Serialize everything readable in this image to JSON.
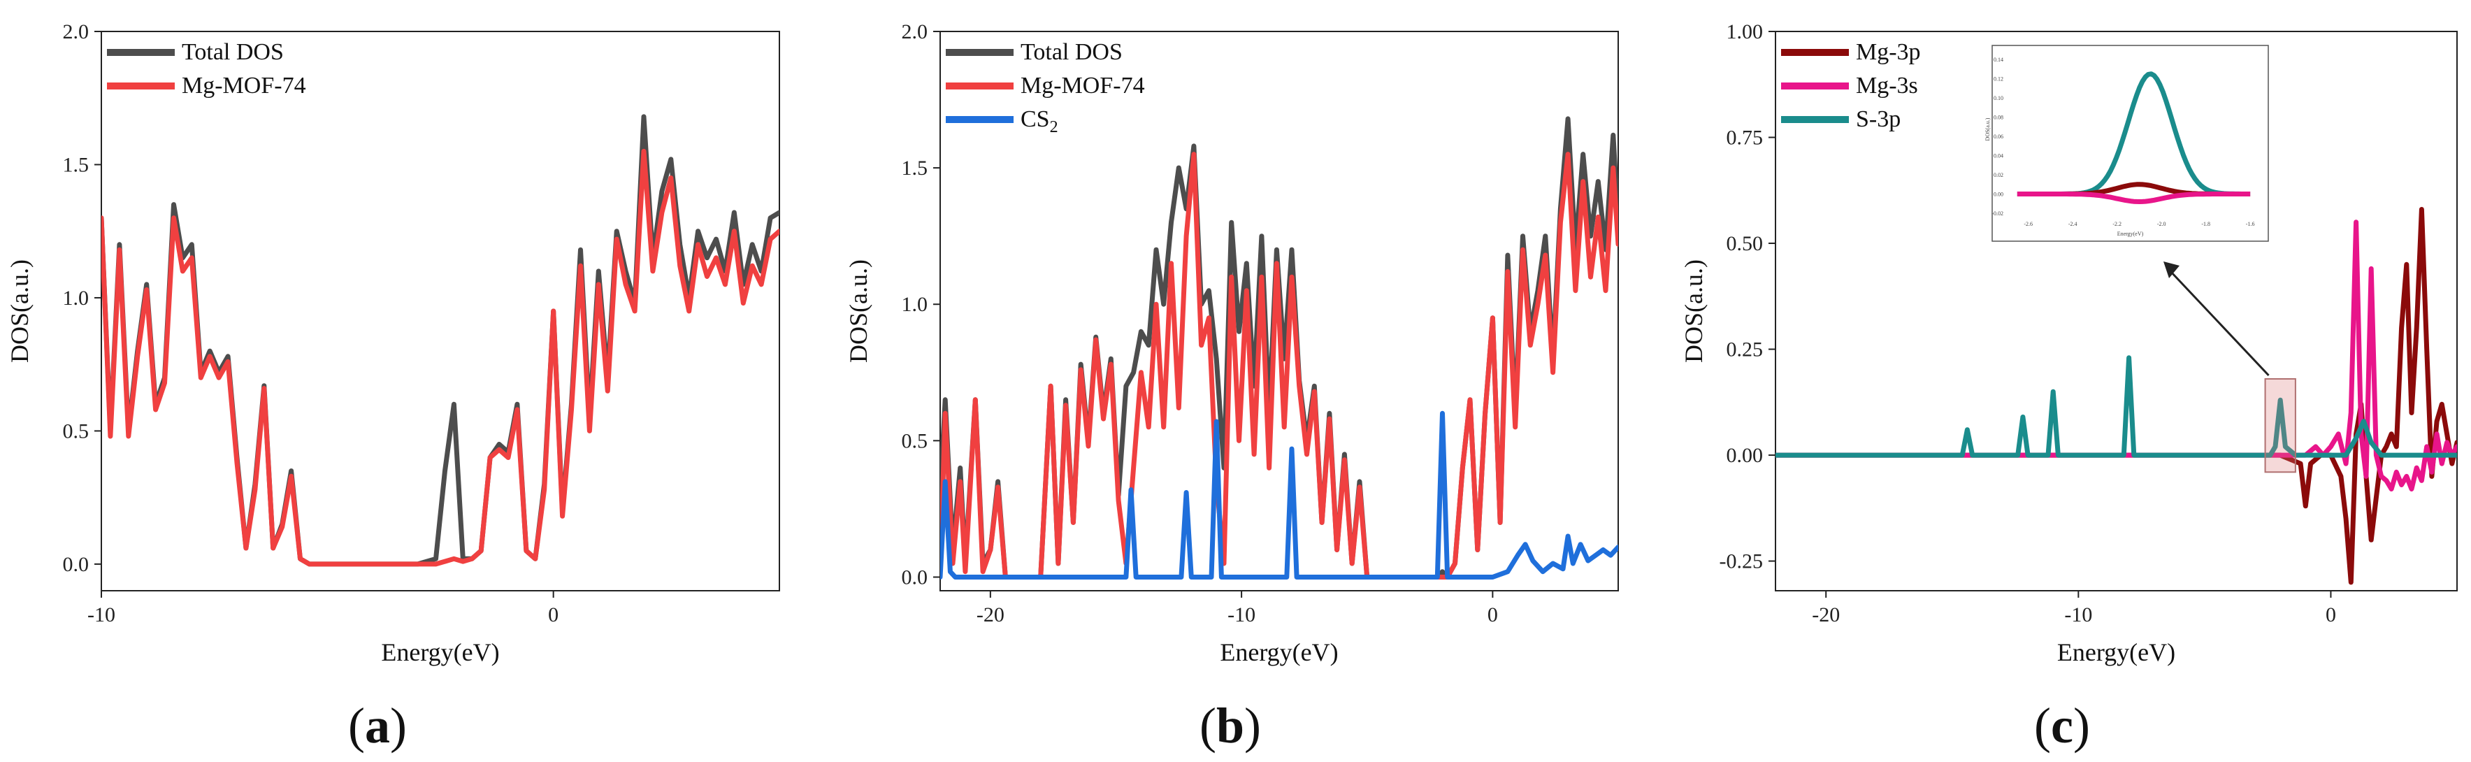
{
  "chart_data": [
    {
      "type": "line",
      "panel_label": "a",
      "xlabel": "Energy(eV)",
      "ylabel": "DOS(a.u.)",
      "xlim": [
        -10,
        5
      ],
      "ylim": [
        -0.1,
        2.0
      ],
      "xticks": [
        -10,
        0
      ],
      "yticks": [
        "0.0",
        "0.5",
        "1.0",
        "1.5",
        "2.0"
      ],
      "legend_position": "top-left",
      "series": [
        {
          "name": "Total DOS",
          "color": "#4d4d4d",
          "x": [
            -10,
            -9.8,
            -9.6,
            -9.4,
            -9.2,
            -9.0,
            -8.8,
            -8.6,
            -8.4,
            -8.2,
            -8.0,
            -7.8,
            -7.6,
            -7.4,
            -7.2,
            -7.0,
            -6.8,
            -6.6,
            -6.4,
            -6.2,
            -6.0,
            -5.8,
            -5.6,
            -5.4,
            -5.2,
            -5.0,
            -4.5,
            -4.0,
            -3.5,
            -3.0,
            -2.6,
            -2.4,
            -2.2,
            -2.0,
            -1.8,
            -1.6,
            -1.4,
            -1.2,
            -1.0,
            -0.8,
            -0.6,
            -0.4,
            -0.2,
            0.0,
            0.2,
            0.4,
            0.6,
            0.8,
            1.0,
            1.2,
            1.4,
            1.6,
            1.8,
            2.0,
            2.2,
            2.4,
            2.6,
            2.8,
            3.0,
            3.2,
            3.4,
            3.6,
            3.8,
            4.0,
            4.2,
            4.4,
            4.6,
            4.8,
            5.0
          ],
          "y": [
            1.3,
            0.5,
            1.2,
            0.5,
            0.8,
            1.05,
            0.6,
            0.7,
            1.35,
            1.15,
            1.2,
            0.72,
            0.8,
            0.72,
            0.78,
            0.4,
            0.06,
            0.3,
            0.67,
            0.06,
            0.15,
            0.35,
            0.02,
            0.0,
            0.0,
            0.0,
            0.0,
            0.0,
            0.0,
            0.0,
            0.02,
            0.35,
            0.6,
            0.02,
            0.02,
            0.05,
            0.4,
            0.45,
            0.42,
            0.6,
            0.05,
            0.02,
            0.3,
            0.95,
            0.2,
            0.6,
            1.18,
            0.55,
            1.1,
            0.7,
            1.25,
            1.1,
            0.98,
            1.68,
            1.15,
            1.4,
            1.52,
            1.2,
            1.0,
            1.25,
            1.15,
            1.22,
            1.1,
            1.32,
            1.05,
            1.2,
            1.1,
            1.3,
            1.32
          ]
        },
        {
          "name": "Mg-MOF-74",
          "color": "#f04040",
          "x": [
            -10,
            -9.8,
            -9.6,
            -9.4,
            -9.2,
            -9.0,
            -8.8,
            -8.6,
            -8.4,
            -8.2,
            -8.0,
            -7.8,
            -7.6,
            -7.4,
            -7.2,
            -7.0,
            -6.8,
            -6.6,
            -6.4,
            -6.2,
            -6.0,
            -5.8,
            -5.6,
            -5.4,
            -5.2,
            -5.0,
            -4.5,
            -4.0,
            -3.5,
            -3.0,
            -2.6,
            -2.4,
            -2.2,
            -2.0,
            -1.8,
            -1.6,
            -1.4,
            -1.2,
            -1.0,
            -0.8,
            -0.6,
            -0.4,
            -0.2,
            0.0,
            0.2,
            0.4,
            0.6,
            0.8,
            1.0,
            1.2,
            1.4,
            1.6,
            1.8,
            2.0,
            2.2,
            2.4,
            2.6,
            2.8,
            3.0,
            3.2,
            3.4,
            3.6,
            3.8,
            4.0,
            4.2,
            4.4,
            4.6,
            4.8,
            5.0
          ],
          "y": [
            1.3,
            0.48,
            1.18,
            0.48,
            0.78,
            1.03,
            0.58,
            0.68,
            1.3,
            1.1,
            1.15,
            0.7,
            0.78,
            0.7,
            0.76,
            0.38,
            0.06,
            0.28,
            0.66,
            0.06,
            0.14,
            0.33,
            0.02,
            0.0,
            0.0,
            0.0,
            0.0,
            0.0,
            0.0,
            0.0,
            0.0,
            0.01,
            0.02,
            0.01,
            0.02,
            0.05,
            0.4,
            0.43,
            0.4,
            0.58,
            0.05,
            0.02,
            0.28,
            0.95,
            0.18,
            0.58,
            1.12,
            0.5,
            1.05,
            0.65,
            1.22,
            1.05,
            0.95,
            1.55,
            1.1,
            1.32,
            1.45,
            1.12,
            0.95,
            1.2,
            1.08,
            1.15,
            1.05,
            1.25,
            0.98,
            1.12,
            1.05,
            1.22,
            1.25
          ]
        }
      ]
    },
    {
      "type": "line",
      "panel_label": "b",
      "xlabel": "Energy(eV)",
      "ylabel": "DOS(a.u.)",
      "xlim": [
        -22,
        5
      ],
      "ylim": [
        -0.05,
        2.0
      ],
      "xticks": [
        -20,
        -10,
        0
      ],
      "yticks": [
        "0.0",
        "0.5",
        "1.0",
        "1.5",
        "2.0"
      ],
      "legend_position": "top-left",
      "series": [
        {
          "name": "Total DOS",
          "color": "#4d4d4d",
          "x": [
            -22,
            -21.8,
            -21.5,
            -21.2,
            -21.0,
            -20.6,
            -20.3,
            -20.0,
            -19.7,
            -19.4,
            -19.0,
            -18.5,
            -18.0,
            -17.6,
            -17.3,
            -17.0,
            -16.7,
            -16.4,
            -16.1,
            -15.8,
            -15.5,
            -15.2,
            -14.9,
            -14.6,
            -14.3,
            -14.0,
            -13.7,
            -13.4,
            -13.1,
            -12.8,
            -12.5,
            -12.2,
            -11.9,
            -11.6,
            -11.3,
            -11.0,
            -10.7,
            -10.4,
            -10.1,
            -9.8,
            -9.5,
            -9.2,
            -8.9,
            -8.6,
            -8.3,
            -8.0,
            -7.7,
            -7.4,
            -7.1,
            -6.8,
            -6.5,
            -6.2,
            -5.9,
            -5.6,
            -5.3,
            -5.0,
            -4.0,
            -3.0,
            -2.4,
            -2.2,
            -2.0,
            -1.8,
            -1.5,
            -1.2,
            -0.9,
            -0.6,
            -0.3,
            0.0,
            0.3,
            0.6,
            0.9,
            1.2,
            1.5,
            1.8,
            2.1,
            2.4,
            2.7,
            3.0,
            3.3,
            3.6,
            3.9,
            4.2,
            4.5,
            4.8,
            5.0
          ],
          "y": [
            0.3,
            0.65,
            0.1,
            0.4,
            0.05,
            0.65,
            0.05,
            0.1,
            0.35,
            0.0,
            0.0,
            0.0,
            0.0,
            0.7,
            0.05,
            0.65,
            0.2,
            0.78,
            0.5,
            0.88,
            0.6,
            0.8,
            0.3,
            0.7,
            0.75,
            0.9,
            0.85,
            1.2,
            1.0,
            1.3,
            1.5,
            1.35,
            1.58,
            1.0,
            1.05,
            0.8,
            0.4,
            1.3,
            0.9,
            1.15,
            0.7,
            1.25,
            0.6,
            1.2,
            0.8,
            1.2,
            0.72,
            0.5,
            0.7,
            0.2,
            0.6,
            0.1,
            0.45,
            0.05,
            0.35,
            0.0,
            0.0,
            0.0,
            0.0,
            0.0,
            0.02,
            0.0,
            0.05,
            0.4,
            0.65,
            0.1,
            0.6,
            0.95,
            0.2,
            1.18,
            0.6,
            1.25,
            0.9,
            1.05,
            1.25,
            0.8,
            1.35,
            1.68,
            1.2,
            1.55,
            1.25,
            1.45,
            1.2,
            1.62,
            1.3
          ]
        },
        {
          "name": "Mg-MOF-74",
          "color": "#f04040",
          "x": [
            -22,
            -21.8,
            -21.5,
            -21.2,
            -21.0,
            -20.6,
            -20.3,
            -20.0,
            -19.7,
            -19.4,
            -19.0,
            -18.5,
            -18.0,
            -17.6,
            -17.3,
            -17.0,
            -16.7,
            -16.4,
            -16.1,
            -15.8,
            -15.5,
            -15.2,
            -14.9,
            -14.6,
            -14.3,
            -14.0,
            -13.7,
            -13.4,
            -13.1,
            -12.8,
            -12.5,
            -12.2,
            -11.9,
            -11.6,
            -11.3,
            -11.0,
            -10.7,
            -10.4,
            -10.1,
            -9.8,
            -9.5,
            -9.2,
            -8.9,
            -8.6,
            -8.3,
            -8.0,
            -7.7,
            -7.4,
            -7.1,
            -6.8,
            -6.5,
            -6.2,
            -5.9,
            -5.6,
            -5.3,
            -5.0,
            -4.0,
            -3.0,
            -2.4,
            -2.2,
            -2.0,
            -1.8,
            -1.5,
            -1.2,
            -0.9,
            -0.6,
            -0.3,
            0.0,
            0.3,
            0.6,
            0.9,
            1.2,
            1.5,
            1.8,
            2.1,
            2.4,
            2.7,
            3.0,
            3.3,
            3.6,
            3.9,
            4.2,
            4.5,
            4.8,
            5.0
          ],
          "y": [
            0.02,
            0.6,
            0.05,
            0.35,
            0.02,
            0.65,
            0.02,
            0.1,
            0.33,
            0.0,
            0.0,
            0.0,
            0.0,
            0.7,
            0.05,
            0.63,
            0.2,
            0.76,
            0.48,
            0.87,
            0.58,
            0.78,
            0.28,
            0.05,
            0.4,
            0.75,
            0.55,
            1.0,
            0.55,
            1.15,
            0.62,
            1.25,
            1.55,
            0.85,
            0.95,
            0.35,
            0.05,
            1.1,
            0.5,
            1.05,
            0.45,
            1.1,
            0.4,
            1.15,
            0.55,
            1.1,
            0.7,
            0.45,
            0.68,
            0.2,
            0.58,
            0.1,
            0.43,
            0.05,
            0.33,
            0.0,
            0.0,
            0.0,
            0.0,
            0.0,
            0.0,
            0.0,
            0.05,
            0.4,
            0.65,
            0.1,
            0.6,
            0.95,
            0.2,
            1.12,
            0.55,
            1.2,
            0.85,
            1.0,
            1.18,
            0.75,
            1.3,
            1.55,
            1.05,
            1.45,
            1.1,
            1.32,
            1.05,
            1.5,
            1.22
          ]
        },
        {
          "name": "CS",
          "name_subscript": "2",
          "color": "#1f6fdb",
          "x": [
            -22,
            -21.8,
            -21.6,
            -21.4,
            -21.0,
            -20.0,
            -18.0,
            -16.0,
            -15.0,
            -14.6,
            -14.4,
            -14.2,
            -14.0,
            -13.0,
            -12.4,
            -12.2,
            -12.0,
            -11.8,
            -11.4,
            -11.2,
            -11.0,
            -10.8,
            -10.6,
            -10.0,
            -9.0,
            -8.2,
            -8.0,
            -7.8,
            -7.6,
            -7.0,
            -5.0,
            -3.0,
            -2.4,
            -2.2,
            -2.0,
            -1.8,
            -1.0,
            0.0,
            0.6,
            1.0,
            1.3,
            1.6,
            2.0,
            2.4,
            2.8,
            3.0,
            3.2,
            3.5,
            3.8,
            4.1,
            4.4,
            4.7,
            5.0
          ],
          "y": [
            0.0,
            0.35,
            0.02,
            0.0,
            0.0,
            0.0,
            0.0,
            0.0,
            0.0,
            0.0,
            0.32,
            0.0,
            0.0,
            0.0,
            0.0,
            0.31,
            0.0,
            0.0,
            0.0,
            0.0,
            0.57,
            0.0,
            0.0,
            0.0,
            0.0,
            0.0,
            0.47,
            0.0,
            0.0,
            0.0,
            0.0,
            0.0,
            0.0,
            0.0,
            0.6,
            0.0,
            0.0,
            0.0,
            0.02,
            0.08,
            0.12,
            0.06,
            0.02,
            0.05,
            0.03,
            0.15,
            0.05,
            0.12,
            0.06,
            0.08,
            0.1,
            0.08,
            0.11
          ]
        }
      ]
    },
    {
      "type": "line",
      "panel_label": "c",
      "xlabel": "Energy(eV)",
      "ylabel": "DOS(a.u.)",
      "xlim": [
        -22,
        5
      ],
      "ylim": [
        -0.32,
        1.0
      ],
      "xticks": [
        -20,
        -10,
        0
      ],
      "yticks": [
        "-0.25",
        "0.00",
        "0.25",
        "0.50",
        "0.75",
        "1.00"
      ],
      "legend_position": "top-left",
      "series": [
        {
          "name": "Mg-3p",
          "color": "#8b0a0a",
          "x": [
            -22,
            -10,
            -2,
            -1.2,
            -1.0,
            -0.8,
            -0.4,
            0.0,
            0.4,
            0.6,
            0.8,
            1.0,
            1.2,
            1.4,
            1.6,
            1.8,
            2.0,
            2.2,
            2.4,
            2.6,
            2.8,
            3.0,
            3.2,
            3.4,
            3.6,
            3.8,
            4.0,
            4.2,
            4.4,
            4.6,
            4.8,
            5.0
          ],
          "y": [
            0.0,
            0.0,
            0.0,
            -0.02,
            -0.12,
            -0.02,
            0.0,
            0.0,
            -0.05,
            -0.15,
            -0.3,
            0.05,
            0.12,
            -0.05,
            -0.2,
            -0.1,
            0.0,
            0.02,
            0.05,
            0.02,
            0.3,
            0.45,
            0.1,
            0.3,
            0.58,
            0.25,
            -0.05,
            0.08,
            0.12,
            0.05,
            -0.02,
            0.03
          ]
        },
        {
          "name": "Mg-3s",
          "color": "#e8158a",
          "x": [
            -22,
            -10,
            -2,
            -1.0,
            -0.6,
            -0.3,
            0.0,
            0.3,
            0.6,
            0.8,
            1.0,
            1.2,
            1.4,
            1.6,
            1.8,
            2.0,
            2.2,
            2.4,
            2.6,
            2.8,
            3.0,
            3.2,
            3.4,
            3.6,
            3.8,
            4.0,
            4.2,
            4.4,
            4.6,
            4.8,
            5.0
          ],
          "y": [
            0.0,
            0.0,
            0.0,
            0.0,
            0.02,
            0.0,
            0.02,
            0.05,
            -0.02,
            0.1,
            0.55,
            0.05,
            -0.05,
            0.44,
            0.0,
            -0.05,
            -0.06,
            -0.08,
            -0.04,
            -0.07,
            -0.05,
            -0.08,
            -0.03,
            -0.06,
            0.02,
            -0.04,
            0.05,
            -0.02,
            0.03,
            0.0,
            0.02
          ]
        },
        {
          "name": "S-3p",
          "color": "#1a8c8c",
          "x": [
            -22,
            -15,
            -14.6,
            -14.4,
            -14.2,
            -13.0,
            -12.4,
            -12.2,
            -12.0,
            -11.4,
            -11.2,
            -11.0,
            -10.8,
            -10.0,
            -8.2,
            -8.0,
            -7.8,
            -7.6,
            -7.0,
            -3.0,
            -2.4,
            -2.2,
            -2.0,
            -1.8,
            -1.4,
            0.0,
            0.6,
            1.0,
            1.3,
            1.6,
            2.0,
            3.0,
            5.0
          ],
          "y": [
            0.0,
            0.0,
            0.0,
            0.06,
            0.0,
            0.0,
            0.0,
            0.09,
            0.0,
            0.0,
            0.0,
            0.15,
            0.0,
            0.0,
            0.0,
            0.23,
            0.0,
            0.0,
            0.0,
            0.0,
            0.0,
            0.02,
            0.13,
            0.02,
            0.0,
            0.0,
            0.0,
            0.04,
            0.08,
            0.03,
            0.0,
            0.0,
            0.0
          ]
        }
      ],
      "inset": {
        "description": "zoom of highlighted region near -2 eV",
        "ylabel": "DOS(a.u.)",
        "xlabel": "Energy(eV)",
        "xticks": [
          "-2.6",
          "-2.4",
          "-2.2",
          "-2.0",
          "-1.8",
          "-1.6"
        ],
        "yticks": [
          "-0.02",
          "0.00",
          "0.02",
          "0.04",
          "0.06",
          "0.08",
          "0.10",
          "0.12",
          "0.14"
        ],
        "series": [
          {
            "name": "S-3p",
            "color": "#1a8c8c",
            "peak": 0.125,
            "center": -2.05,
            "width": 0.14
          },
          {
            "name": "Mg-3p",
            "color": "#8b0a0a",
            "peak": 0.01,
            "center": -2.1,
            "width": 0.14
          },
          {
            "name": "Mg-3s",
            "color": "#e8158a",
            "peak": -0.008,
            "center": -2.1,
            "width": 0.14
          }
        ]
      }
    }
  ]
}
